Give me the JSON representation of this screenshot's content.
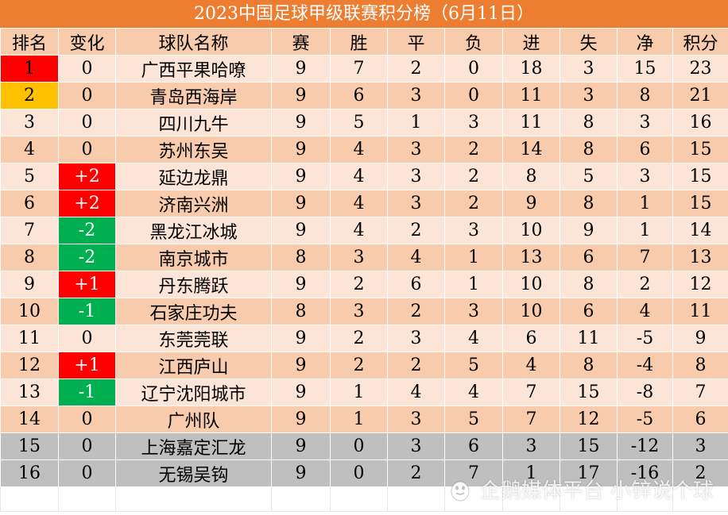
{
  "title": "2023中国足球甲级联赛积分榜（6月11日）",
  "headers": [
    "排名",
    "变化",
    "球队名称",
    "赛",
    "胜",
    "平",
    "负",
    "进",
    "失",
    "净",
    "积分"
  ],
  "rows": [
    [
      "1",
      "0",
      "广西平果哈嘹",
      "9",
      "7",
      "2",
      "0",
      "18",
      "3",
      "15",
      "23"
    ],
    [
      "2",
      "0",
      "青岛西海岸",
      "9",
      "6",
      "3",
      "0",
      "11",
      "3",
      "8",
      "21"
    ],
    [
      "3",
      "0",
      "四川九牛",
      "9",
      "5",
      "1",
      "3",
      "11",
      "8",
      "3",
      "16"
    ],
    [
      "4",
      "0",
      "苏州东吴",
      "9",
      "4",
      "3",
      "2",
      "14",
      "8",
      "6",
      "15"
    ],
    [
      "5",
      "+2",
      "延边龙鼎",
      "9",
      "4",
      "3",
      "2",
      "8",
      "5",
      "3",
      "15"
    ],
    [
      "6",
      "+2",
      "济南兴洲",
      "9",
      "4",
      "3",
      "2",
      "9",
      "8",
      "1",
      "15"
    ],
    [
      "7",
      "-2",
      "黑龙江冰城",
      "9",
      "4",
      "2",
      "3",
      "10",
      "9",
      "1",
      "14"
    ],
    [
      "8",
      "-2",
      "南京城市",
      "8",
      "3",
      "4",
      "1",
      "13",
      "6",
      "7",
      "13"
    ],
    [
      "9",
      "+1",
      "丹东腾跃",
      "9",
      "2",
      "6",
      "1",
      "10",
      "8",
      "2",
      "12"
    ],
    [
      "10",
      "-1",
      "石家庄功夫",
      "8",
      "3",
      "2",
      "3",
      "10",
      "6",
      "4",
      "11"
    ],
    [
      "11",
      "0",
      "东莞莞联",
      "9",
      "2",
      "3",
      "4",
      "6",
      "11",
      "-5",
      "9"
    ],
    [
      "12",
      "+1",
      "江西庐山",
      "9",
      "2",
      "2",
      "5",
      "4",
      "8",
      "-4",
      "8"
    ],
    [
      "13",
      "-1",
      "辽宁沈阳城市",
      "9",
      "1",
      "4",
      "4",
      "7",
      "15",
      "-8",
      "7"
    ],
    [
      "14",
      "0",
      "广州队",
      "9",
      "1",
      "3",
      "5",
      "7",
      "12",
      "-5",
      "6"
    ],
    [
      "15",
      "0",
      "上海嘉定汇龙",
      "9",
      "0",
      "3",
      "6",
      "3",
      "15",
      "-12",
      "3"
    ],
    [
      "16",
      "0",
      "无锡吴钩",
      "9",
      "0",
      "2",
      "7",
      "1",
      "17",
      "-16",
      "2"
    ]
  ],
  "watermark": "企鹅媒体平台 小锌说个球",
  "colors": {
    "title_bg": "#ED7D31",
    "row_dark": "#F8CBAD",
    "row_light": "#FCE4D6",
    "relegation": "#BFBFBF",
    "rank_first": "#FF0000",
    "rank_second": "#FFC000",
    "change_up": "#FF0000",
    "change_down": "#00B050"
  }
}
